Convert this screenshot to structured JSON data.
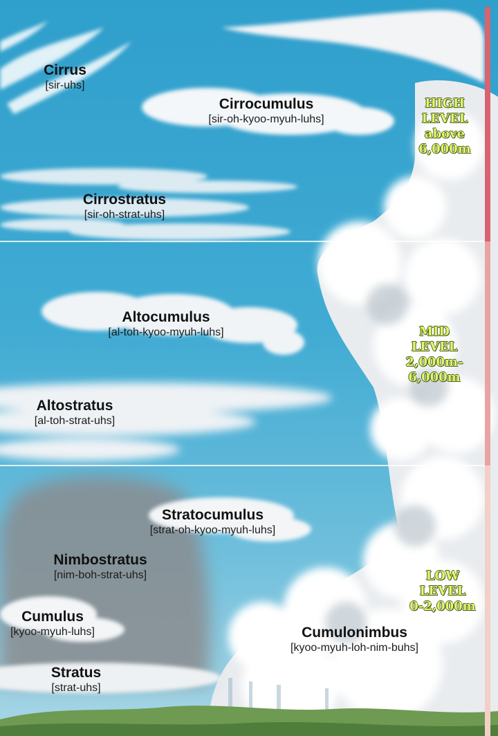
{
  "clouds": [
    {
      "id": "cirrus",
      "name": "Cirrus",
      "pron": "[sir-uhs]"
    },
    {
      "id": "cirrocumulus",
      "name": "Cirrocumulus",
      "pron": "[sir-oh-kyoo-myuh-luhs]"
    },
    {
      "id": "cirrostratus",
      "name": "Cirrostratus",
      "pron": "[sir-oh-strat-uhs]"
    },
    {
      "id": "altocumulus",
      "name": "Altocumulus",
      "pron": "[al-toh-kyoo-myuh-luhs]"
    },
    {
      "id": "altostratus",
      "name": "Altostratus",
      "pron": "[al-toh-strat-uhs]"
    },
    {
      "id": "stratocumulus",
      "name": "Stratocumulus",
      "pron": "[strat-oh-kyoo-myuh-luhs]"
    },
    {
      "id": "nimbostratus",
      "name": "Nimbostratus",
      "pron": "[nim-boh-strat-uhs]"
    },
    {
      "id": "cumulus",
      "name": "Cumulus",
      "pron": "[kyoo-myuh-luhs]"
    },
    {
      "id": "stratus",
      "name": "Stratus",
      "pron": "[strat-uhs]"
    },
    {
      "id": "cumulonimbus",
      "name": "Cumulonimbus",
      "pron": "[kyoo-myuh-loh-nim-buhs]"
    }
  ],
  "levels": [
    {
      "id": "high",
      "lines": [
        "HIGH",
        "LEVEL",
        "above",
        "6,000m"
      ],
      "bar_color": "#d7646f"
    },
    {
      "id": "mid",
      "lines": [
        "MID",
        "LEVEL",
        "2,000m-",
        "6,000m"
      ],
      "bar_color": "#eaa3a3"
    },
    {
      "id": "low",
      "lines": [
        "LOW",
        "LEVEL",
        "0-2,000m"
      ],
      "bar_color": "#f3cfc8"
    }
  ],
  "colors": {
    "sky_top": "#2f9fcc",
    "sky_mid": "#45aed4",
    "sky_low": "#8ccbe0",
    "level_text": "#e6f56a",
    "ground": "#5f8a46"
  }
}
